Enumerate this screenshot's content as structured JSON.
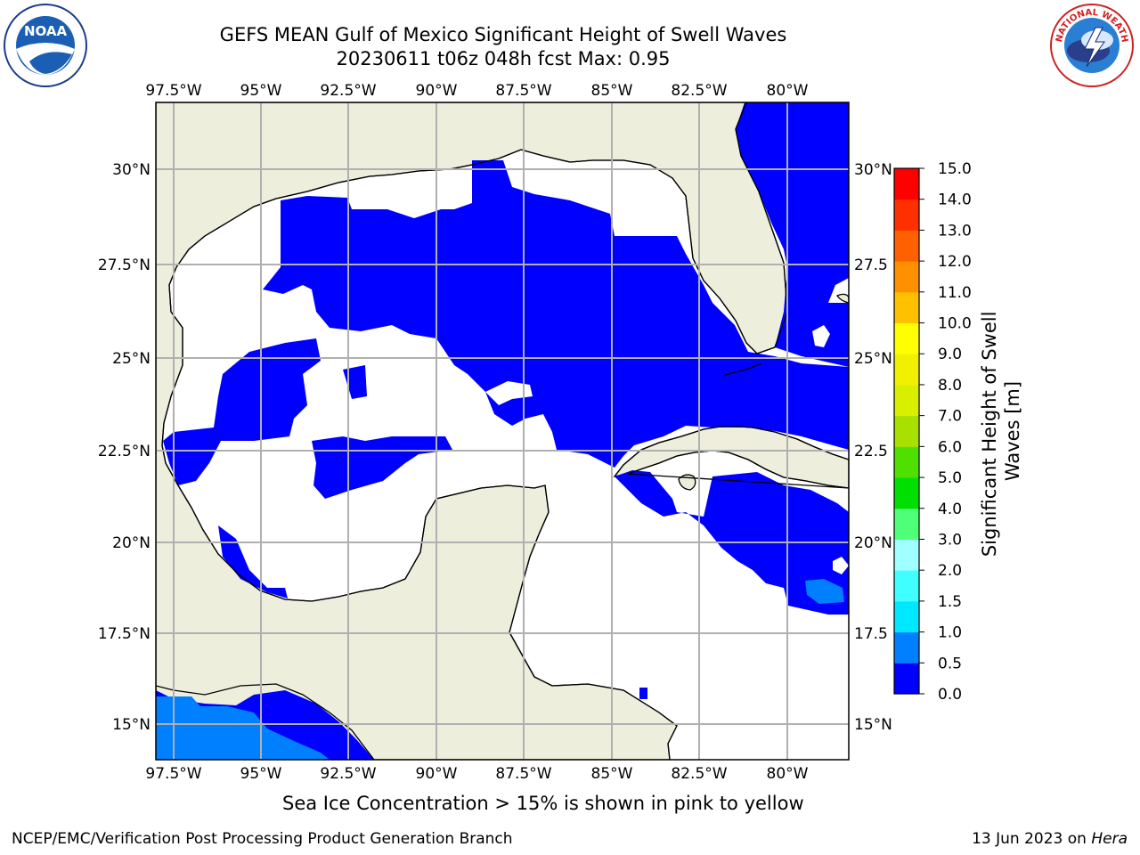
{
  "header": {
    "title_line1": "GEFS MEAN Gulf of Mexico Significant Height of Swell Waves",
    "title_line2": "20230611 t06z 048h fcst   Max: 0.95"
  },
  "map": {
    "lon_ticks": [
      "97.5°W",
      "95°W",
      "92.5°W",
      "90°W",
      "87.5°W",
      "85°W",
      "82.5°W",
      "80°W"
    ],
    "lat_ticks_left": [
      "30°N",
      "27.5°N",
      "25°N",
      "22.5°N",
      "20°N",
      "17.5°N",
      "15°N"
    ],
    "lat_ticks_right": [
      "30°N",
      "27.5",
      "25°N",
      "22.5",
      "20°N",
      "17.5",
      "15°N"
    ],
    "land_color": "#eeeedd",
    "wave_color_low": "#0000ff",
    "wave_color_mid": "#0080ff",
    "grid_color": "#b0b0b0"
  },
  "colorbar": {
    "label": "Significant Height of Swell Waves [m]",
    "tick_labels": [
      "0.0",
      "0.5",
      "1.0",
      "1.5",
      "2.0",
      "3.0",
      "4.0",
      "5.0",
      "6.0",
      "7.0",
      "8.0",
      "9.0",
      "10.0",
      "11.0",
      "12.0",
      "13.0",
      "14.0",
      "15.0"
    ],
    "colors": [
      "#0000ff",
      "#0080ff",
      "#00e8ff",
      "#40ffff",
      "#a0ffff",
      "#50ff78",
      "#00e000",
      "#50e000",
      "#a8e000",
      "#d8f000",
      "#f0f000",
      "#ffff00",
      "#ffc000",
      "#ff9000",
      "#ff6000",
      "#ff3000",
      "#ff0000"
    ]
  },
  "caption": "Sea Ice Concentration > 15% is shown in pink to yellow",
  "footer": {
    "left": "NCEP/EMC/Verification Post Processing Product Generation Branch",
    "right_date": "13 Jun 2023 on",
    "right_host": "Hera"
  },
  "logos": {
    "left_text": "NOAA",
    "right_text": "NATIONAL WEATHER SERVICE"
  }
}
